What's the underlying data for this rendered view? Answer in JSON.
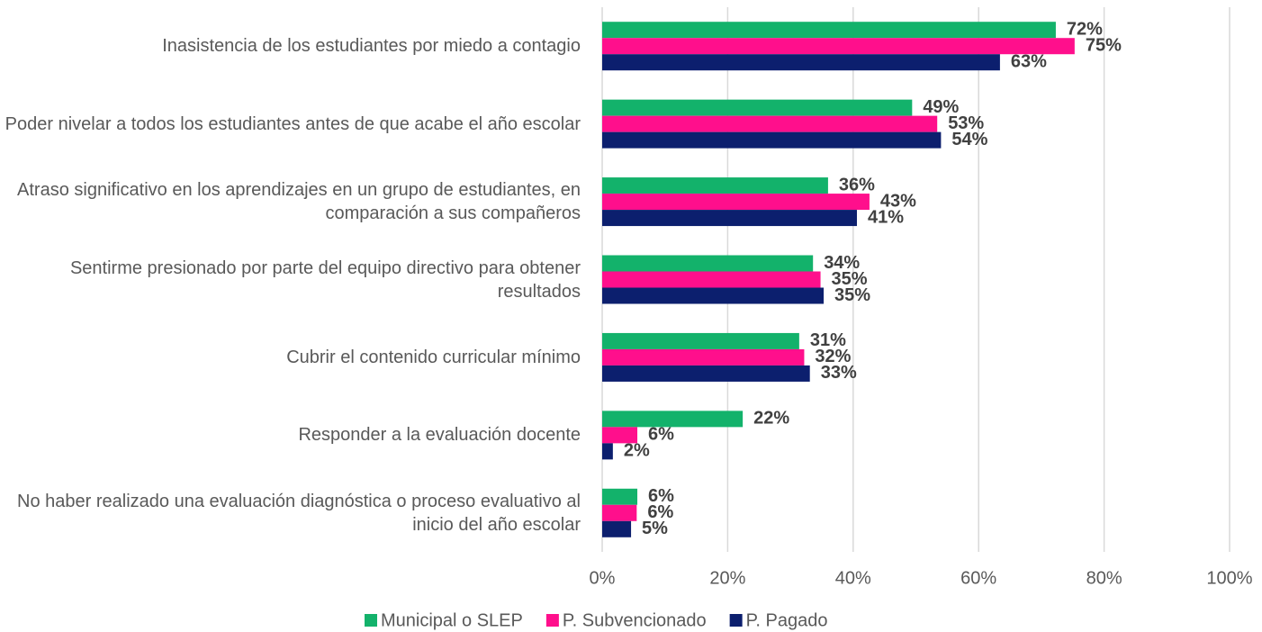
{
  "chart_data": {
    "type": "hbar",
    "categories": [
      "Inasistencia de los estudiantes por miedo a contagio",
      "Poder nivelar a todos los estudiantes antes de que acabe el año escolar",
      "Atraso significativo en los aprendizajes en un grupo de estudiantes, en comparación a sus compañeros",
      "Sentirme presionado por parte del equipo directivo para obtener resultados",
      "Cubrir el contenido curricular mínimo",
      "Responder a la evaluación docente",
      "No haber realizado una evaluación diagnóstica o proceso evaluativo al inicio del año escolar"
    ],
    "series": [
      {
        "name": "Municipal o SLEP",
        "color": "#13b26b",
        "values": [
          72.3,
          49.4,
          36.0,
          33.6,
          31.4,
          22.4,
          5.6
        ],
        "value_labels": [
          "72%",
          "49%",
          "36%",
          "34%",
          "31%",
          "22%",
          "6%"
        ]
      },
      {
        "name": "P. Subvencionado",
        "color": "#ff0f8c",
        "values": [
          75.3,
          53.4,
          42.6,
          34.8,
          32.2,
          5.6,
          5.5
        ],
        "value_labels": [
          "75%",
          "53%",
          "43%",
          "35%",
          "32%",
          "6%",
          "6%"
        ]
      },
      {
        "name": "P. Pagado",
        "color": "#0c1f6e",
        "values": [
          63.4,
          54.0,
          40.6,
          35.3,
          33.1,
          1.7,
          4.6
        ],
        "value_labels": [
          "63%",
          "54%",
          "41%",
          "35%",
          "33%",
          "2%",
          "5%"
        ]
      }
    ],
    "xlim": [
      0,
      100
    ],
    "xticks": [
      {
        "value": 0,
        "label": "0%"
      },
      {
        "value": 20,
        "label": "20%"
      },
      {
        "value": 40,
        "label": "40%"
      },
      {
        "value": 60,
        "label": "60%"
      },
      {
        "value": 80,
        "label": "80%"
      },
      {
        "value": 100,
        "label": "100%"
      }
    ],
    "grid": true,
    "legend": "bottom"
  }
}
